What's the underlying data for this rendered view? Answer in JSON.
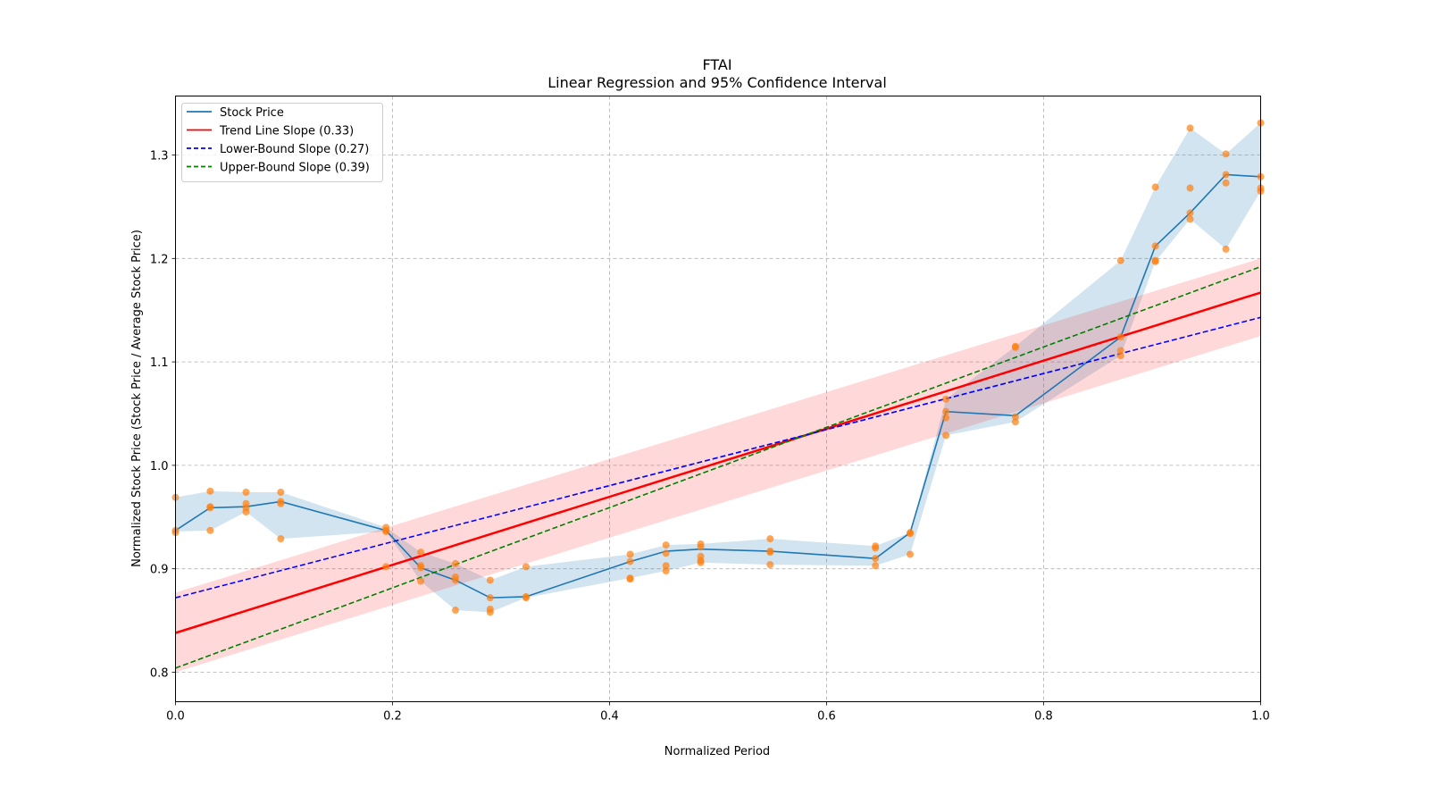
{
  "chart_data": {
    "type": "line",
    "title": "FTAI",
    "subtitle": "Linear Regression and 95% Confidence Interval",
    "xlabel": "Normalized Period",
    "ylabel": "Normalized Stock Price (Stock Price / Average Stock Price)",
    "xlim": [
      0.0,
      1.0
    ],
    "ylim": [
      0.771,
      1.357
    ],
    "grid": true,
    "legend_position": "top-left",
    "x_ticks": [
      "0.0",
      "0.2",
      "0.4",
      "0.6",
      "0.8",
      "1.0"
    ],
    "x_tick_values": [
      0.0,
      0.2,
      0.4,
      0.6,
      0.8,
      1.0
    ],
    "y_ticks": [
      "0.8",
      "0.9",
      "1.0",
      "1.1",
      "1.2",
      "1.3"
    ],
    "y_tick_values": [
      0.8,
      0.9,
      1.0,
      1.1,
      1.2,
      1.3
    ],
    "legend": [
      {
        "label": "Stock Price",
        "color": "#1f77b4",
        "style": "solid"
      },
      {
        "label": "Trend Line Slope (0.33)",
        "color": "#ff0000",
        "style": "solid"
      },
      {
        "label": "Lower-Bound Slope (0.27)",
        "color": "#0000ff",
        "style": "dashed"
      },
      {
        "label": "Upper-Bound Slope (0.39)",
        "color": "#008000",
        "style": "dashed"
      }
    ],
    "series": [
      {
        "name": "Stock Price",
        "color": "#1f77b4",
        "x": [
          0.0,
          0.032,
          0.065,
          0.097,
          0.194,
          0.226,
          0.258,
          0.29,
          0.323,
          0.419,
          0.452,
          0.484,
          0.548,
          0.645,
          0.677,
          0.71,
          0.774,
          0.871,
          0.903,
          0.935,
          0.968,
          1.0
        ],
        "y": [
          0.937,
          0.959,
          0.96,
          0.965,
          0.937,
          0.901,
          0.889,
          0.872,
          0.873,
          0.907,
          0.917,
          0.919,
          0.917,
          0.91,
          0.935,
          1.052,
          1.048,
          1.124,
          1.212,
          1.244,
          1.281,
          1.279
        ],
        "band_lower": [
          0.936,
          0.937,
          0.955,
          0.929,
          0.936,
          0.888,
          0.86,
          0.858,
          0.872,
          0.891,
          0.898,
          0.906,
          0.904,
          0.903,
          0.914,
          1.029,
          1.042,
          1.106,
          1.197,
          1.238,
          1.209,
          1.265
        ],
        "band_upper": [
          0.969,
          0.975,
          0.974,
          0.974,
          0.94,
          0.916,
          0.905,
          0.889,
          0.902,
          0.914,
          0.923,
          0.924,
          0.929,
          0.922,
          0.935,
          1.064,
          1.115,
          1.198,
          1.269,
          1.326,
          1.301,
          1.331
        ]
      },
      {
        "name": "Trend Line Slope (0.33)",
        "color": "#ff0000",
        "x": [
          0.0,
          1.0
        ],
        "y": [
          0.838,
          1.167
        ],
        "ci_lower": [
          0.8,
          1.125
        ],
        "ci_upper": [
          0.877,
          1.2
        ]
      },
      {
        "name": "Lower-Bound Slope (0.27)",
        "color": "#0000ff",
        "x": [
          0.0,
          1.0
        ],
        "y": [
          0.872,
          1.143
        ]
      },
      {
        "name": "Upper-Bound Slope (0.39)",
        "color": "#008000",
        "x": [
          0.0,
          1.0
        ],
        "y": [
          0.804,
          1.192
        ]
      }
    ],
    "scatter": {
      "name": "Observations",
      "color": "#ff7f0e",
      "points": [
        [
          0.0,
          0.969
        ],
        [
          0.0,
          0.937
        ],
        [
          0.0,
          0.935
        ],
        [
          0.032,
          0.975
        ],
        [
          0.032,
          0.96
        ],
        [
          0.032,
          0.959
        ],
        [
          0.032,
          0.937
        ],
        [
          0.065,
          0.974
        ],
        [
          0.065,
          0.963
        ],
        [
          0.065,
          0.959
        ],
        [
          0.065,
          0.955
        ],
        [
          0.097,
          0.974
        ],
        [
          0.097,
          0.965
        ],
        [
          0.097,
          0.963
        ],
        [
          0.097,
          0.929
        ],
        [
          0.194,
          0.94
        ],
        [
          0.194,
          0.937
        ],
        [
          0.194,
          0.936
        ],
        [
          0.194,
          0.902
        ],
        [
          0.226,
          0.916
        ],
        [
          0.226,
          0.903
        ],
        [
          0.226,
          0.901
        ],
        [
          0.226,
          0.888
        ],
        [
          0.258,
          0.905
        ],
        [
          0.258,
          0.892
        ],
        [
          0.258,
          0.889
        ],
        [
          0.258,
          0.86
        ],
        [
          0.29,
          0.889
        ],
        [
          0.29,
          0.872
        ],
        [
          0.29,
          0.861
        ],
        [
          0.29,
          0.858
        ],
        [
          0.323,
          0.902
        ],
        [
          0.323,
          0.873
        ],
        [
          0.323,
          0.872
        ],
        [
          0.419,
          0.914
        ],
        [
          0.419,
          0.907
        ],
        [
          0.419,
          0.891
        ],
        [
          0.419,
          0.89
        ],
        [
          0.452,
          0.923
        ],
        [
          0.452,
          0.915
        ],
        [
          0.452,
          0.903
        ],
        [
          0.452,
          0.898
        ],
        [
          0.484,
          0.924
        ],
        [
          0.484,
          0.921
        ],
        [
          0.484,
          0.912
        ],
        [
          0.484,
          0.908
        ],
        [
          0.484,
          0.906
        ],
        [
          0.548,
          0.929
        ],
        [
          0.548,
          0.917
        ],
        [
          0.548,
          0.916
        ],
        [
          0.548,
          0.904
        ],
        [
          0.645,
          0.922
        ],
        [
          0.645,
          0.92
        ],
        [
          0.645,
          0.91
        ],
        [
          0.645,
          0.903
        ],
        [
          0.677,
          0.935
        ],
        [
          0.677,
          0.934
        ],
        [
          0.677,
          0.914
        ],
        [
          0.71,
          1.064
        ],
        [
          0.71,
          1.052
        ],
        [
          0.71,
          1.046
        ],
        [
          0.71,
          1.029
        ],
        [
          0.774,
          1.115
        ],
        [
          0.774,
          1.114
        ],
        [
          0.774,
          1.047
        ],
        [
          0.774,
          1.042
        ],
        [
          0.871,
          1.198
        ],
        [
          0.871,
          1.124
        ],
        [
          0.871,
          1.111
        ],
        [
          0.871,
          1.106
        ],
        [
          0.903,
          1.269
        ],
        [
          0.903,
          1.212
        ],
        [
          0.903,
          1.198
        ],
        [
          0.903,
          1.197
        ],
        [
          0.935,
          1.326
        ],
        [
          0.935,
          1.268
        ],
        [
          0.935,
          1.244
        ],
        [
          0.935,
          1.238
        ],
        [
          0.968,
          1.301
        ],
        [
          0.968,
          1.281
        ],
        [
          0.968,
          1.273
        ],
        [
          0.968,
          1.209
        ],
        [
          1.0,
          1.331
        ],
        [
          1.0,
          1.279
        ],
        [
          1.0,
          1.268
        ],
        [
          1.0,
          1.265
        ]
      ]
    }
  }
}
